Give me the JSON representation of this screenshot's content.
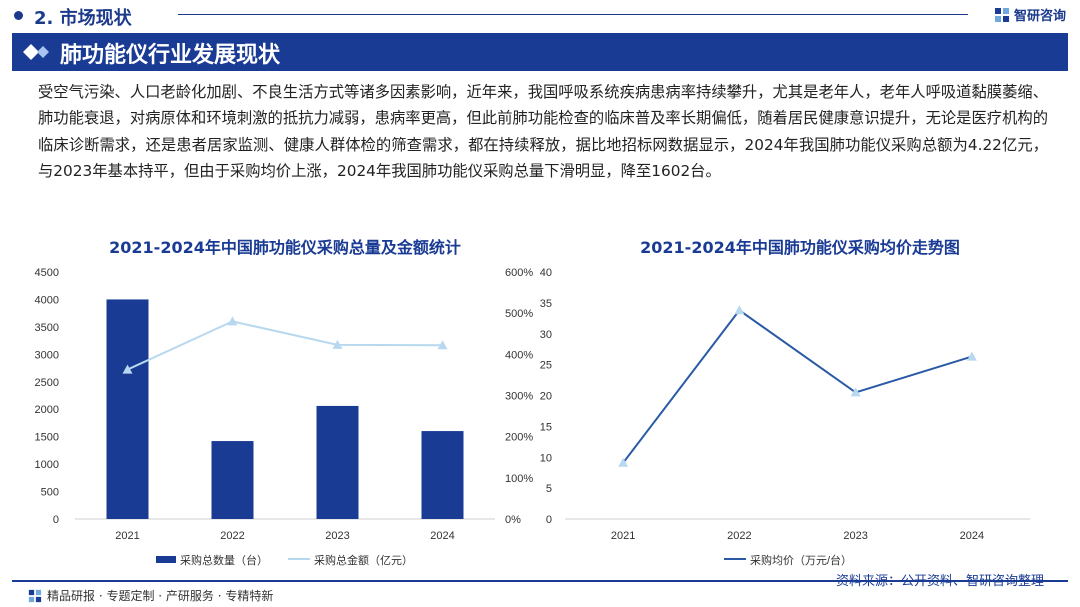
{
  "header": {
    "section": "2. 市场现状",
    "brand": "智研咨询"
  },
  "banner": {
    "title": "肺功能仪行业发展现状"
  },
  "paragraph": "受空气污染、人口老龄化加剧、不良生活方式等诸多因素影响，近年来，我国呼吸系统疾病患病率持续攀升，尤其是老年人，老年人呼吸道黏膜萎缩、肺功能衰退，对病原体和环境刺激的抵抗力减弱，患病率更高，但此前肺功能检查的临床普及率长期偏低，随着居民健康意识提升，无论是医疗机构的临床诊断需求，还是患者居家监测、健康人群体检的筛查需求，都在持续释放，据比地招标网数据显示，2024年我国肺功能仪采购总额为4.22亿元，与2023年基本持平，但由于采购均价上涨，2024年我国肺功能仪采购总量下滑明显，降至1602台。",
  "colors": {
    "navy": "#1a3b94",
    "light_blue": "#b8d8ef",
    "line_blue": "#2a5aa6"
  },
  "chart_data": [
    {
      "type": "bar",
      "title": "2021-2024年中国肺功能仪采购总量及金额统计",
      "categories": [
        "2021",
        "2022",
        "2023",
        "2024"
      ],
      "series": [
        {
          "name": "采购总数量（台）",
          "type": "bar",
          "axis": "left",
          "values": [
            4000,
            1420,
            2060,
            1602
          ]
        },
        {
          "name": "采购总金额（亿元）",
          "type": "line",
          "axis": "right",
          "values": [
            3.63,
            4.8,
            4.23,
            4.22
          ]
        }
      ],
      "left_axis": {
        "ticks": [
          "0",
          "500",
          "1000",
          "1500",
          "2000",
          "2500",
          "3000",
          "3500",
          "4000",
          "4500"
        ],
        "range": [
          0,
          4500
        ]
      },
      "right_axis": {
        "ticks": [
          "0%",
          "100%",
          "200%",
          "300%",
          "400%",
          "500%",
          "600%"
        ],
        "range": [
          0,
          6
        ]
      }
    },
    {
      "type": "line",
      "title": "2021-2024年中国肺功能仪采购均价走势图",
      "categories": [
        "2021",
        "2022",
        "2023",
        "2024"
      ],
      "series": [
        {
          "name": "采购均价（万元/台）",
          "values": [
            9.1,
            33.8,
            20.5,
            26.3
          ]
        }
      ],
      "y_axis": {
        "ticks": [
          "0",
          "5",
          "10",
          "15",
          "20",
          "25",
          "30",
          "35",
          "40"
        ],
        "range": [
          0,
          40
        ]
      }
    }
  ],
  "footer": {
    "left": "精品研报 · 专题定制 · 产研服务 · 专精特新",
    "source": "资料来源：公开资料、智研咨询整理"
  }
}
